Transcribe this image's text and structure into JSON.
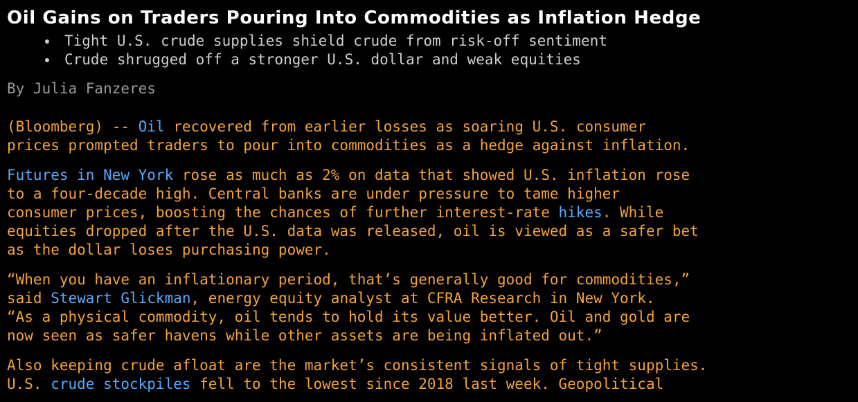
{
  "article": {
    "headline": "Oil Gains on Traders Pouring Into Commodities as Inflation Hedge",
    "bullets": [
      "Tight U.S. crude supplies shield crude from risk-off sentiment",
      "Crude shrugged off a stronger U.S. dollar and weak equities"
    ],
    "byline": "By Julia Fanzeres",
    "p1": {
      "l1_a": "(Bloomberg) -- ",
      "l1_link": "Oil",
      "l1_b": " recovered from earlier losses as soaring U.S. consumer",
      "l2": "prices prompted traders to pour into commodities as a hedge against inflation."
    },
    "p2": {
      "l1_link": "Futures in New York",
      "l1_b": " rose as much as 2% on data that showed U.S. inflation rose",
      "l2": "to a four-decade high. Central banks are under pressure to tame higher",
      "l3_a": "consumer prices, boosting the chances of further interest-rate ",
      "l3_link": "hikes",
      "l3_b": ". While",
      "l4": "equities dropped after the U.S. data was released, oil is viewed as a safer bet",
      "l5": "as the dollar loses purchasing power."
    },
    "p3": {
      "l1": "“When you have an inflationary period, that’s generally good for commodities,”",
      "l2_a": "said ",
      "l2_link": "Stewart Glickman",
      "l2_b": ", energy equity analyst at CFRA Research in New York.",
      "l3": "“As a physical commodity, oil tends to hold its value better. Oil and gold are",
      "l4": "now seen as safer havens while other assets are being inflated out.”"
    },
    "p4": {
      "l1": "Also keeping crude afloat are the market’s consistent signals of tight supplies.",
      "l2_a": "U.S. ",
      "l2_link": "crude stockpiles",
      "l2_b": " fell to the lowest since 2018 last week. Geopolitical"
    }
  },
  "colors": {
    "background": "#000000",
    "headline": "#ffffff",
    "bullets": "#cfcfcf",
    "byline": "#9a9a9a",
    "body_text": "#f5a23c",
    "link": "#5aa9ff"
  }
}
